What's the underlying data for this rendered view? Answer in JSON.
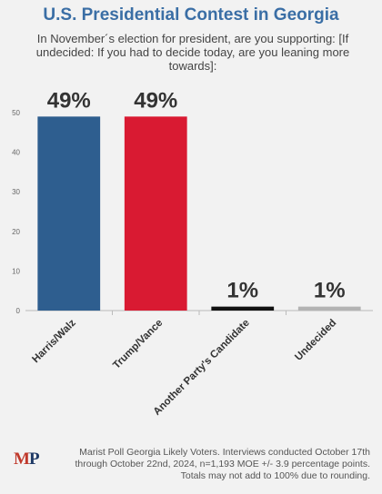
{
  "header": {
    "title": "U.S. Presidential Contest in Georgia",
    "subtitle": "In November´s election for president, are you supporting: [If undecided: If you had to decide today, are you leaning more towards]:"
  },
  "chart_data": {
    "type": "bar",
    "categories": [
      "Harris/Walz",
      "Trump/Vance",
      "Another Party's Candidate",
      "Undecided"
    ],
    "values": [
      49,
      49,
      1,
      1
    ],
    "data_labels": [
      "49%",
      "49%",
      "1%",
      "1%"
    ],
    "colors": [
      "#2e5e8f",
      "#d91a32",
      "#111111",
      "#b3b3b3"
    ],
    "ylim": [
      0,
      50
    ],
    "yticks": [
      0,
      10,
      20,
      30,
      40,
      50
    ],
    "grid": false,
    "legend": "none"
  },
  "footer": {
    "logo_m": "M",
    "logo_p": "P",
    "source_lines": [
      "Marist Poll Georgia Likely Voters. Interviews conducted October 17th",
      "through October 22nd, 2024, n=1,193 MOE +/- 3.9 percentage points.",
      "Totals may not add to 100% due to rounding."
    ]
  }
}
